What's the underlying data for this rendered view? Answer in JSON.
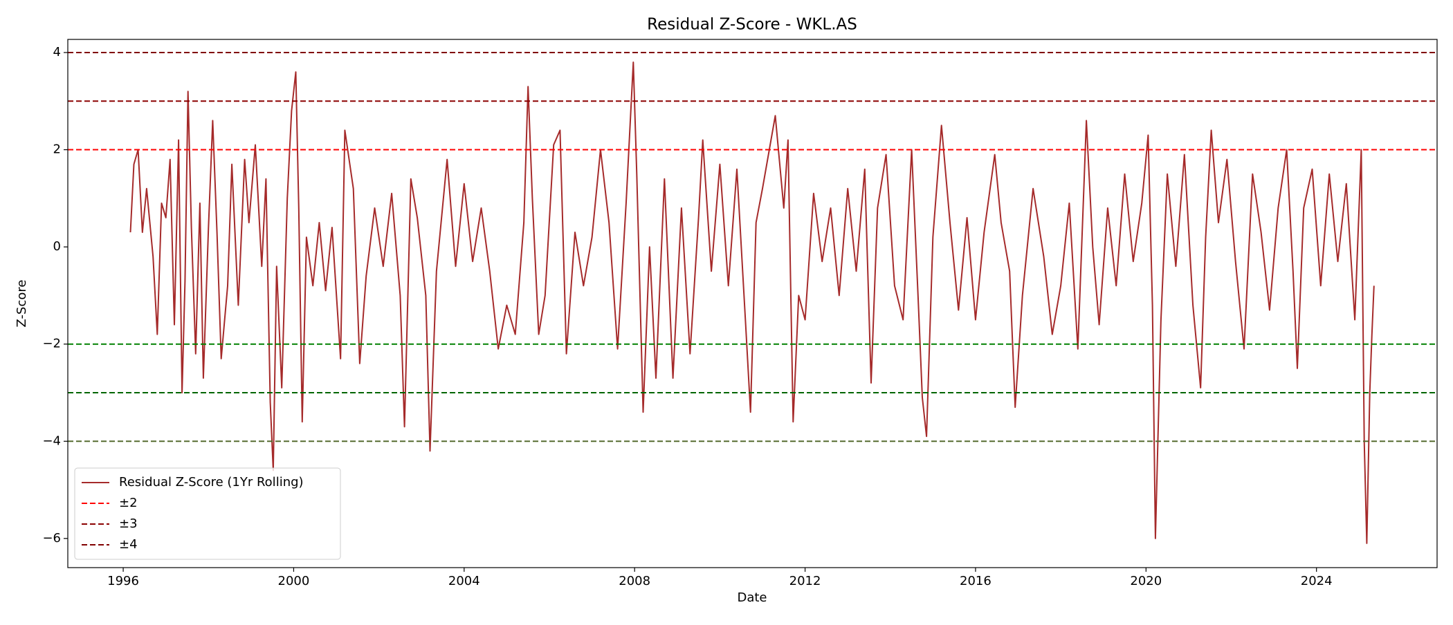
{
  "chart_data": {
    "type": "line",
    "title": "Residual Z-Score - WKL.AS",
    "x_label": "Date",
    "y_label": "Z-Score",
    "xlim": [
      1994.7,
      2026.83
    ],
    "xticks": [
      1996,
      2000,
      2004,
      2008,
      2012,
      2016,
      2020,
      2024
    ],
    "ylim": [
      -6.6,
      4.27
    ],
    "yticks": [
      {
        "value": -6,
        "label": "−6"
      },
      {
        "value": -4,
        "label": "−4"
      },
      {
        "value": -2,
        "label": "−2"
      },
      0,
      2,
      4
    ],
    "legend": "lower left",
    "series": [
      {
        "name": "Residual Z-Score (1Yr Rolling)",
        "color": "#a52a2a",
        "x": [
          1996.17,
          1996.25,
          1996.35,
          1996.45,
          1996.55,
          1996.7,
          1996.8,
          1996.9,
          1997.0,
          1997.1,
          1997.2,
          1997.3,
          1997.38,
          1997.45,
          1997.52,
          1997.6,
          1997.7,
          1997.8,
          1997.88,
          1998.0,
          1998.1,
          1998.2,
          1998.3,
          1998.45,
          1998.55,
          1998.7,
          1998.85,
          1998.95,
          1999.1,
          1999.25,
          1999.35,
          1999.45,
          1999.52,
          1999.6,
          1999.72,
          1999.85,
          1999.95,
          2000.05,
          2000.12,
          2000.2,
          2000.3,
          2000.45,
          2000.6,
          2000.75,
          2000.9,
          2001.1,
          2001.2,
          2001.4,
          2001.55,
          2001.7,
          2001.9,
          2002.1,
          2002.3,
          2002.5,
          2002.6,
          2002.75,
          2002.9,
          2003.1,
          2003.2,
          2003.35,
          2003.6,
          2003.8,
          2004.0,
          2004.2,
          2004.4,
          2004.6,
          2004.8,
          2005.0,
          2005.2,
          2005.4,
          2005.5,
          2005.6,
          2005.75,
          2005.9,
          2006.1,
          2006.25,
          2006.4,
          2006.6,
          2006.8,
          2007.0,
          2007.2,
          2007.4,
          2007.6,
          2007.8,
          2007.97,
          2008.05,
          2008.2,
          2008.35,
          2008.5,
          2008.7,
          2008.9,
          2009.1,
          2009.3,
          2009.5,
          2009.6,
          2009.8,
          2010.0,
          2010.2,
          2010.4,
          2010.6,
          2010.72,
          2010.85,
          2011.0,
          2011.3,
          2011.5,
          2011.6,
          2011.72,
          2011.85,
          2012.0,
          2012.2,
          2012.4,
          2012.6,
          2012.8,
          2013.0,
          2013.2,
          2013.4,
          2013.55,
          2013.7,
          2013.9,
          2014.1,
          2014.3,
          2014.5,
          2014.65,
          2014.75,
          2014.85,
          2015.0,
          2015.2,
          2015.4,
          2015.6,
          2015.8,
          2016.0,
          2016.2,
          2016.45,
          2016.6,
          2016.8,
          2016.93,
          2017.1,
          2017.35,
          2017.6,
          2017.8,
          2018.0,
          2018.2,
          2018.4,
          2018.6,
          2018.75,
          2018.9,
          2019.1,
          2019.3,
          2019.5,
          2019.7,
          2019.9,
          2020.05,
          2020.15,
          2020.22,
          2020.35,
          2020.5,
          2020.7,
          2020.9,
          2021.1,
          2021.28,
          2021.4,
          2021.53,
          2021.7,
          2021.9,
          2022.1,
          2022.3,
          2022.5,
          2022.7,
          2022.9,
          2023.1,
          2023.3,
          2023.45,
          2023.55,
          2023.7,
          2023.9,
          2024.1,
          2024.3,
          2024.5,
          2024.7,
          2024.9,
          2025.05,
          2025.12,
          2025.18,
          2025.25,
          2025.3,
          2025.35
        ],
        "values": [
          0.3,
          1.7,
          2.0,
          0.3,
          1.2,
          -0.2,
          -1.8,
          0.9,
          0.6,
          1.8,
          -1.6,
          2.2,
          -3.0,
          -0.7,
          3.2,
          0.4,
          -2.2,
          0.9,
          -2.7,
          0.4,
          2.6,
          0.3,
          -2.3,
          -0.8,
          1.7,
          -1.2,
          1.8,
          0.5,
          2.1,
          -0.4,
          1.4,
          -3.2,
          -4.6,
          -0.4,
          -2.9,
          1.0,
          2.8,
          3.6,
          0.8,
          -3.6,
          0.2,
          -0.8,
          0.5,
          -0.9,
          0.4,
          -2.3,
          2.4,
          1.2,
          -2.4,
          -0.6,
          0.8,
          -0.4,
          1.1,
          -1.0,
          -3.7,
          1.4,
          0.6,
          -1.0,
          -4.2,
          -0.5,
          1.8,
          -0.4,
          1.3,
          -0.3,
          0.8,
          -0.5,
          -2.1,
          -1.2,
          -1.8,
          0.5,
          3.3,
          1.0,
          -1.8,
          -1.0,
          2.1,
          2.4,
          -2.2,
          0.3,
          -0.8,
          0.2,
          2.0,
          0.5,
          -2.1,
          0.9,
          3.8,
          1.5,
          -3.4,
          0.0,
          -2.7,
          1.4,
          -2.7,
          0.8,
          -2.2,
          0.6,
          2.2,
          -0.5,
          1.7,
          -0.8,
          1.6,
          -1.5,
          -3.4,
          0.5,
          1.2,
          2.7,
          0.8,
          2.2,
          -3.6,
          -1.0,
          -1.5,
          1.1,
          -0.3,
          0.8,
          -1.0,
          1.2,
          -0.5,
          1.6,
          -2.8,
          0.8,
          1.9,
          -0.8,
          -1.5,
          2.0,
          -1.0,
          -3.1,
          -3.9,
          0.2,
          2.5,
          0.5,
          -1.3,
          0.6,
          -1.5,
          0.3,
          1.9,
          0.5,
          -0.5,
          -3.3,
          -1.0,
          1.2,
          -0.2,
          -1.8,
          -0.8,
          0.9,
          -2.1,
          2.6,
          0.0,
          -1.6,
          0.8,
          -0.8,
          1.5,
          -0.3,
          0.9,
          2.3,
          -1.2,
          -6.0,
          -1.5,
          1.5,
          -0.4,
          1.9,
          -1.2,
          -2.9,
          0.2,
          2.4,
          0.5,
          1.8,
          -0.3,
          -2.1,
          1.5,
          0.3,
          -1.3,
          0.8,
          2.0,
          -0.5,
          -2.5,
          0.8,
          1.6,
          -0.8,
          1.5,
          -0.3,
          1.3,
          -1.5,
          2.0,
          -4.0,
          -6.1,
          -3.0,
          -1.8,
          -0.8
        ]
      }
    ],
    "hlines": [
      {
        "name": "±2",
        "value": 2,
        "color": "#ff0000"
      },
      {
        "value": -2,
        "color": "#008000"
      },
      {
        "name": "±3",
        "value": 3,
        "color": "#8b0000"
      },
      {
        "value": -3,
        "color": "#006400"
      },
      {
        "name": "±4",
        "value": 4,
        "color": "#800000"
      },
      {
        "value": -4,
        "color": "#556b2f"
      }
    ]
  }
}
